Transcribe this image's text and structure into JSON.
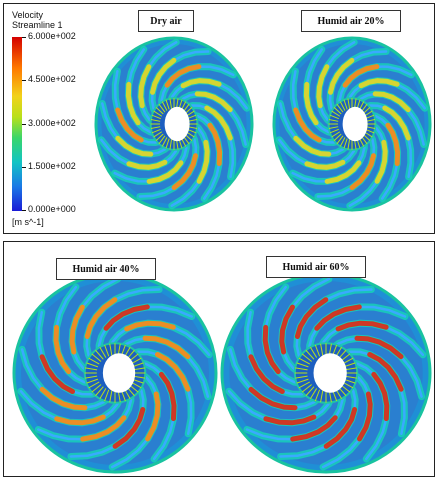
{
  "legend": {
    "title_line1": "Velocity",
    "title_line2": "Streamline 1",
    "unit": "[m s^-1]",
    "ticks": [
      "6.000e+002",
      "4.500e+002",
      "3.000e+002",
      "1.500e+002",
      "0.000e+000"
    ],
    "colors": [
      "#d40000",
      "#ff7a00",
      "#f2d21a",
      "#b8e01a",
      "#39d66a",
      "#12c4c4",
      "#1a78e6",
      "#1a1ad6"
    ]
  },
  "panels": {
    "dry": "Dry air",
    "humid20": "Humid air 20%",
    "humid40": "Humid air 40%",
    "humid60": "Humid air 60%"
  }
}
